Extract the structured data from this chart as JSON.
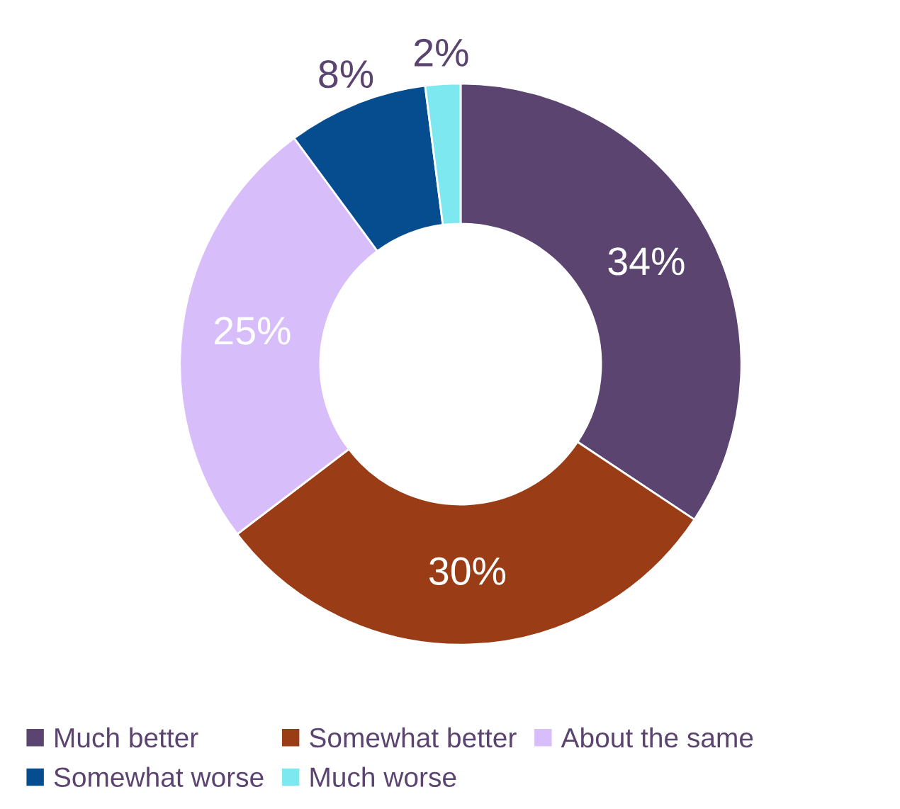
{
  "chart_data": {
    "type": "donut",
    "categories": [
      "Much better",
      "Somewhat better",
      "About the same",
      "Somewhat worse",
      "Much worse"
    ],
    "values": [
      34,
      30,
      25,
      8,
      2
    ],
    "colors": [
      "#5b4570",
      "#9a3d17",
      "#d8bdfb",
      "#054d8f",
      "#7ee8f0"
    ],
    "value_labels": [
      "34%",
      "30%",
      "25%",
      "8%",
      "2%"
    ],
    "legend": "bottom"
  }
}
